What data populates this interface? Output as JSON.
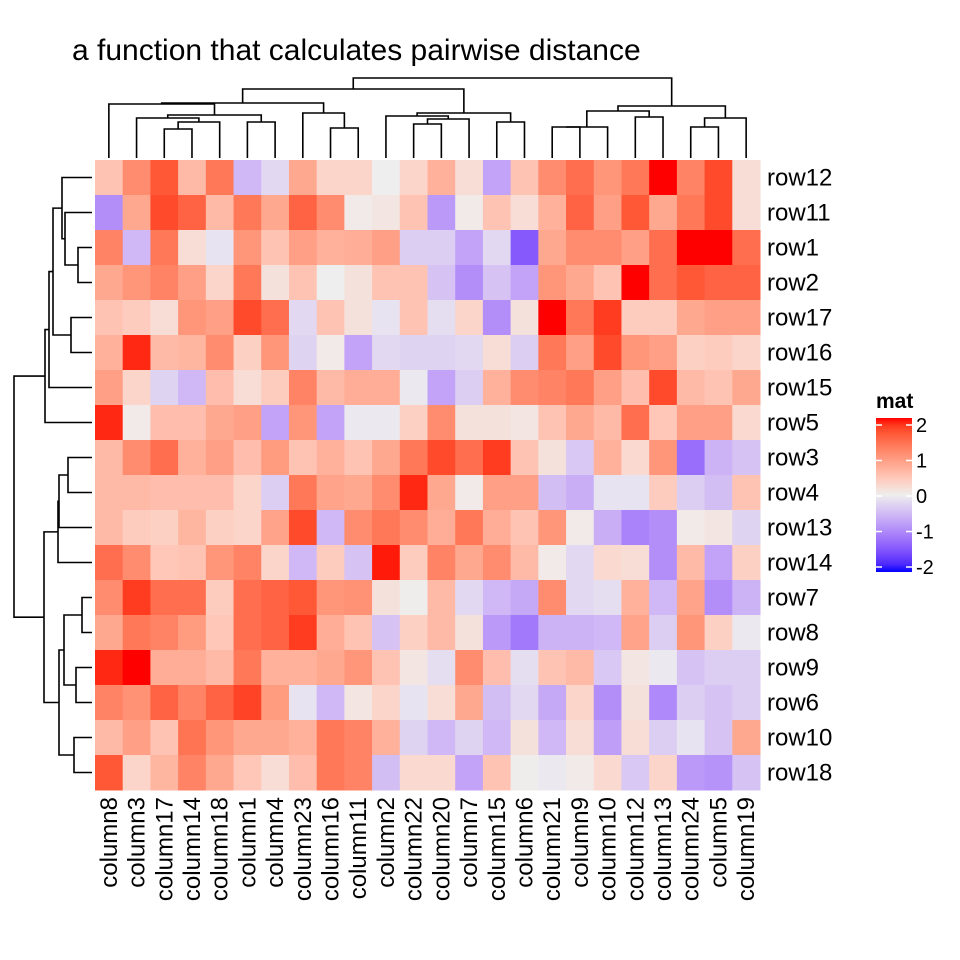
{
  "chart_data": {
    "type": "heatmap",
    "title": "a function that calculates pairwise distance",
    "rows": [
      "row12",
      "row11",
      "row1",
      "row2",
      "row17",
      "row16",
      "row15",
      "row5",
      "row3",
      "row4",
      "row13",
      "row14",
      "row7",
      "row8",
      "row9",
      "row6",
      "row10",
      "row18"
    ],
    "columns": [
      "column8",
      "column3",
      "column17",
      "column14",
      "column18",
      "column1",
      "column4",
      "column23",
      "column16",
      "column11",
      "column2",
      "column22",
      "column20",
      "column7",
      "column15",
      "column6",
      "column21",
      "column9",
      "column10",
      "column12",
      "column13",
      "column24",
      "column5",
      "column19"
    ],
    "values": [
      [
        0.5,
        1.1,
        1.6,
        0.6,
        1.3,
        -0.5,
        -0.2,
        0.8,
        0.3,
        0.3,
        0,
        0.3,
        0.7,
        0.2,
        -0.7,
        0.5,
        1.1,
        1.4,
        1.0,
        1.3,
        2.0,
        1.2,
        1.7,
        0.2
      ],
      [
        -0.9,
        0.8,
        1.7,
        1.5,
        0.6,
        1.3,
        0.8,
        1.5,
        1.1,
        0.05,
        0.1,
        0.5,
        -0.8,
        0.05,
        0.5,
        0.2,
        0.7,
        1.5,
        0.9,
        1.6,
        0.8,
        1.3,
        1.7,
        0.2
      ],
      [
        1.2,
        -0.5,
        1.3,
        0.2,
        -0.1,
        1.0,
        0.5,
        0.9,
        0.7,
        0.75,
        0.9,
        -0.3,
        -0.3,
        -0.7,
        -0.2,
        -1.4,
        0.8,
        1.1,
        1.1,
        0.9,
        1.4,
        2.0,
        2.0,
        1.4
      ],
      [
        0.8,
        1.0,
        1.2,
        0.9,
        0.3,
        1.3,
        0.15,
        0.5,
        0,
        0.15,
        0.5,
        0.5,
        -0.4,
        -0.9,
        -0.4,
        -0.7,
        1.0,
        0.8,
        0.5,
        2.0,
        1.4,
        1.6,
        1.5,
        1.5
      ],
      [
        0.5,
        0.4,
        0.2,
        1.0,
        0.9,
        1.7,
        1.4,
        -0.2,
        0.5,
        0.15,
        -0.1,
        0.5,
        -0.15,
        0.3,
        -0.9,
        0.15,
        2.0,
        1.3,
        1.8,
        0.4,
        0.4,
        0.8,
        0.9,
        0.9
      ],
      [
        0.7,
        1.9,
        0.6,
        0.65,
        1.1,
        0.35,
        1.0,
        -0.25,
        0.05,
        -0.7,
        -0.2,
        -0.25,
        -0.25,
        -0.2,
        0.2,
        -0.3,
        1.3,
        0.9,
        1.7,
        1.0,
        0.9,
        0.35,
        0.4,
        0.3
      ],
      [
        0.9,
        0.3,
        -0.25,
        -0.5,
        0.55,
        0.2,
        0.4,
        1.2,
        0.6,
        0.75,
        0.75,
        -0.05,
        -0.7,
        -0.3,
        0.7,
        1.1,
        1.2,
        1.3,
        0.9,
        0.55,
        1.7,
        0.6,
        0.5,
        0.8
      ],
      [
        1.9,
        0.05,
        0.55,
        0.55,
        0.8,
        0.9,
        -0.7,
        1.0,
        -0.7,
        -0.05,
        -0.05,
        0.35,
        1.1,
        0.15,
        0.15,
        0.1,
        0.5,
        0.8,
        0.6,
        1.4,
        0.45,
        0.9,
        0.9,
        0.25
      ],
      [
        0.6,
        1.1,
        1.4,
        0.7,
        0.9,
        0.55,
        0.95,
        0.5,
        0.7,
        0.5,
        0.8,
        1.3,
        1.7,
        1.4,
        1.8,
        0.5,
        0.15,
        -0.35,
        0.7,
        0.25,
        1.0,
        -1.2,
        -0.55,
        -0.4
      ],
      [
        0.6,
        0.6,
        0.55,
        0.55,
        0.55,
        0.3,
        -0.3,
        1.3,
        0.85,
        0.8,
        1.1,
        1.9,
        0.8,
        0.05,
        0.9,
        0.9,
        -0.45,
        -0.6,
        -0.1,
        -0.1,
        0.4,
        -0.3,
        -0.45,
        0.5
      ],
      [
        0.6,
        0.4,
        0.35,
        0.65,
        0.35,
        0.3,
        0.85,
        1.7,
        -0.5,
        1.1,
        1.3,
        1.1,
        0.75,
        1.3,
        0.75,
        0.5,
        1.0,
        0.05,
        -0.6,
        -1.0,
        -0.9,
        0.05,
        0.1,
        -0.25
      ],
      [
        1.4,
        1.1,
        0.45,
        0.5,
        1.0,
        1.2,
        0.3,
        -0.5,
        0.4,
        -0.4,
        1.95,
        0.4,
        1.2,
        0.8,
        1.1,
        0.6,
        0.05,
        -0.2,
        0.25,
        0.2,
        -0.9,
        0.6,
        -0.7,
        0.35
      ],
      [
        1.1,
        1.8,
        1.4,
        1.4,
        0.4,
        1.4,
        1.5,
        1.6,
        1.0,
        1.05,
        0.15,
        0.02,
        0.6,
        -0.2,
        -0.5,
        -0.65,
        1.1,
        -0.2,
        -0.15,
        0.7,
        -0.5,
        0.85,
        -0.9,
        -0.55
      ],
      [
        0.8,
        1.3,
        1.2,
        0.95,
        0.45,
        1.4,
        1.5,
        1.8,
        0.75,
        0.5,
        -0.4,
        0.35,
        0.6,
        0.15,
        -0.8,
        -1.1,
        -0.55,
        -0.55,
        -0.5,
        0.85,
        -0.3,
        1.0,
        0.35,
        -0.05
      ],
      [
        1.9,
        2.0,
        0.75,
        0.75,
        0.6,
        1.3,
        0.7,
        0.7,
        0.8,
        1.0,
        0.5,
        0.1,
        -0.15,
        1.1,
        0.55,
        -0.15,
        0.5,
        0.6,
        -0.35,
        0.1,
        -0.05,
        -0.4,
        -0.3,
        -0.3
      ],
      [
        1.2,
        1.05,
        1.5,
        1.2,
        1.5,
        1.75,
        0.95,
        -0.1,
        -0.5,
        0.1,
        0.3,
        -0.1,
        0.2,
        0.8,
        -0.45,
        -0.2,
        -0.65,
        0.3,
        -0.9,
        0.15,
        -0.95,
        -0.3,
        -0.4,
        -0.3
      ],
      [
        0.6,
        0.9,
        0.5,
        1.35,
        1.0,
        0.8,
        0.8,
        0.7,
        1.3,
        1.2,
        0.7,
        -0.25,
        -0.5,
        -0.25,
        -0.5,
        0.15,
        -0.5,
        0.2,
        -0.75,
        0.2,
        -0.3,
        -0.1,
        -0.4,
        0.8
      ],
      [
        1.6,
        0.3,
        0.65,
        1.2,
        0.8,
        0.45,
        0.2,
        0.55,
        1.3,
        1.2,
        -0.45,
        0.25,
        0.25,
        -0.7,
        0.5,
        0.02,
        -0.05,
        0.05,
        0.25,
        -0.35,
        0.3,
        -0.8,
        -0.85,
        -0.4
      ]
    ],
    "color_scale": {
      "breaks": [
        -2,
        0,
        2
      ],
      "colors": [
        "#0000FF",
        "#EEEEEE",
        "#FF0000"
      ]
    },
    "legend": {
      "title": "mat",
      "ticks": [
        "2",
        "1",
        "0",
        "-1",
        "-2"
      ],
      "tick_values": [
        2,
        1,
        0,
        -1,
        -2
      ],
      "placement": "right"
    },
    "row_dendrogram": true,
    "column_dendrogram": true
  }
}
